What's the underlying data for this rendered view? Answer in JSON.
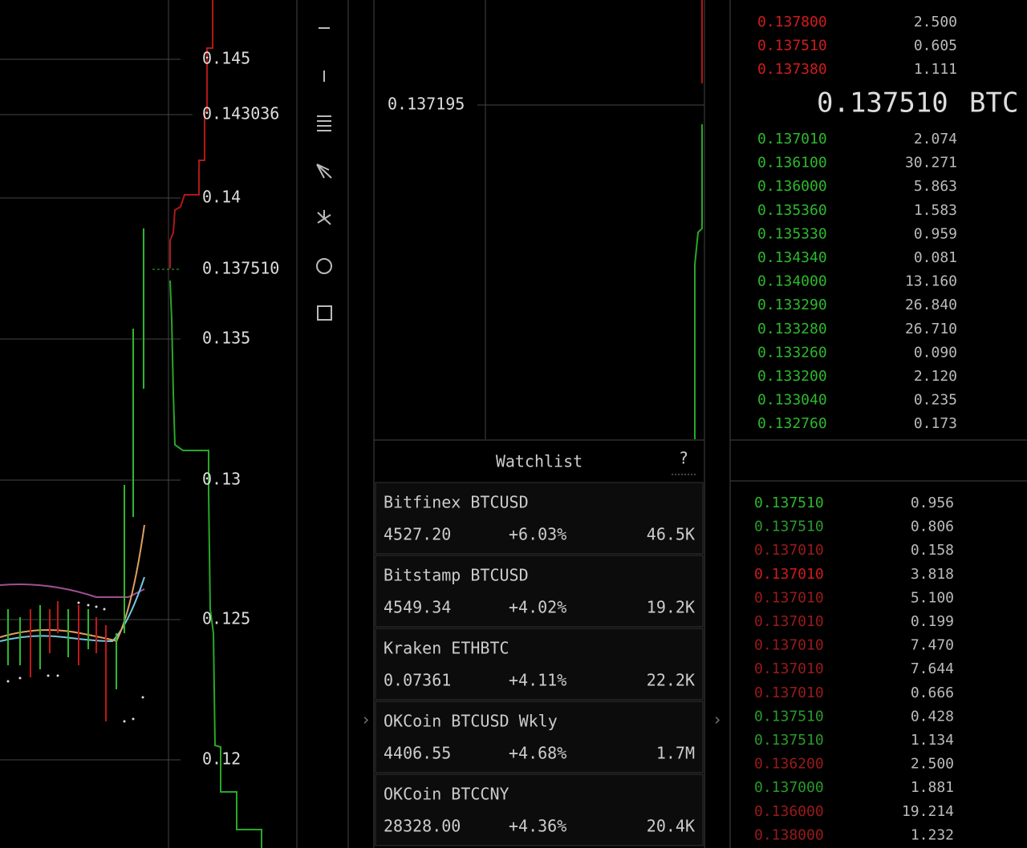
{
  "price_axis": {
    "labels": [
      "0.145",
      "0.143036",
      "0.14",
      "0.137510",
      "0.135",
      "0.13",
      "0.125",
      "0.12"
    ]
  },
  "depth_chart": {
    "label": "0.137195"
  },
  "watchlist": {
    "title": "Watchlist",
    "help": "?",
    "items": [
      {
        "name": "Bitfinex BTCUSD",
        "price": "4527.20",
        "change": "+6.03%",
        "volume": "46.5K"
      },
      {
        "name": "Bitstamp BTCUSD",
        "price": "4549.34",
        "change": "+4.02%",
        "volume": "19.2K"
      },
      {
        "name": "Kraken ETHBTC",
        "price": "0.07361",
        "change": "+4.11%",
        "volume": "22.2K"
      },
      {
        "name": "OKCoin BTCUSD Wkly",
        "price": "4406.55",
        "change": "+4.68%",
        "volume": "1.7M"
      },
      {
        "name": "OKCoin BTCCNY",
        "price": "28328.00",
        "change": "+4.36%",
        "volume": "20.4K"
      }
    ]
  },
  "order_book": {
    "ask_color": "#d01c1c",
    "bid_color": "#2db82d",
    "asks": [
      [
        "0.137800",
        "2.500"
      ],
      [
        "0.137510",
        "0.605"
      ],
      [
        "0.137380",
        "1.111"
      ]
    ],
    "last_price": "0.137510",
    "unit": "BTC",
    "bids": [
      [
        "0.137010",
        "2.074"
      ],
      [
        "0.136100",
        "30.271"
      ],
      [
        "0.136000",
        "5.863"
      ],
      [
        "0.135360",
        "1.583"
      ],
      [
        "0.135330",
        "0.959"
      ],
      [
        "0.134340",
        "0.081"
      ],
      [
        "0.134000",
        "13.160"
      ],
      [
        "0.133290",
        "26.840"
      ],
      [
        "0.133280",
        "26.710"
      ],
      [
        "0.133260",
        "0.090"
      ],
      [
        "0.133200",
        "2.120"
      ],
      [
        "0.133040",
        "0.235"
      ],
      [
        "0.132760",
        "0.173"
      ]
    ]
  },
  "trades": [
    {
      "price": "0.137510",
      "amount": "0.956",
      "color": "#2db82d"
    },
    {
      "price": "0.137510",
      "amount": "0.806",
      "color": "#2a9a2a"
    },
    {
      "price": "0.137010",
      "amount": "0.158",
      "color": "#9a1a1a"
    },
    {
      "price": "0.137010",
      "amount": "3.818",
      "color": "#d01c1c"
    },
    {
      "price": "0.137010",
      "amount": "5.100",
      "color": "#9a1a1a"
    },
    {
      "price": "0.137010",
      "amount": "0.199",
      "color": "#9a1a1a"
    },
    {
      "price": "0.137010",
      "amount": "7.470",
      "color": "#9a1a1a"
    },
    {
      "price": "0.137010",
      "amount": "7.644",
      "color": "#9a1a1a"
    },
    {
      "price": "0.137010",
      "amount": "0.666",
      "color": "#9a1a1a"
    },
    {
      "price": "0.137510",
      "amount": "0.428",
      "color": "#2a9a2a"
    },
    {
      "price": "0.137510",
      "amount": "1.134",
      "color": "#2a9a2a"
    },
    {
      "price": "0.136200",
      "amount": "2.500",
      "color": "#9a1a1a"
    },
    {
      "price": "0.137000",
      "amount": "1.881",
      "color": "#2a9a2a"
    },
    {
      "price": "0.136000",
      "amount": "19.214",
      "color": "#9a1a1a"
    },
    {
      "price": "0.138000",
      "amount": "1.232",
      "color": "#9a1a1a"
    }
  ]
}
